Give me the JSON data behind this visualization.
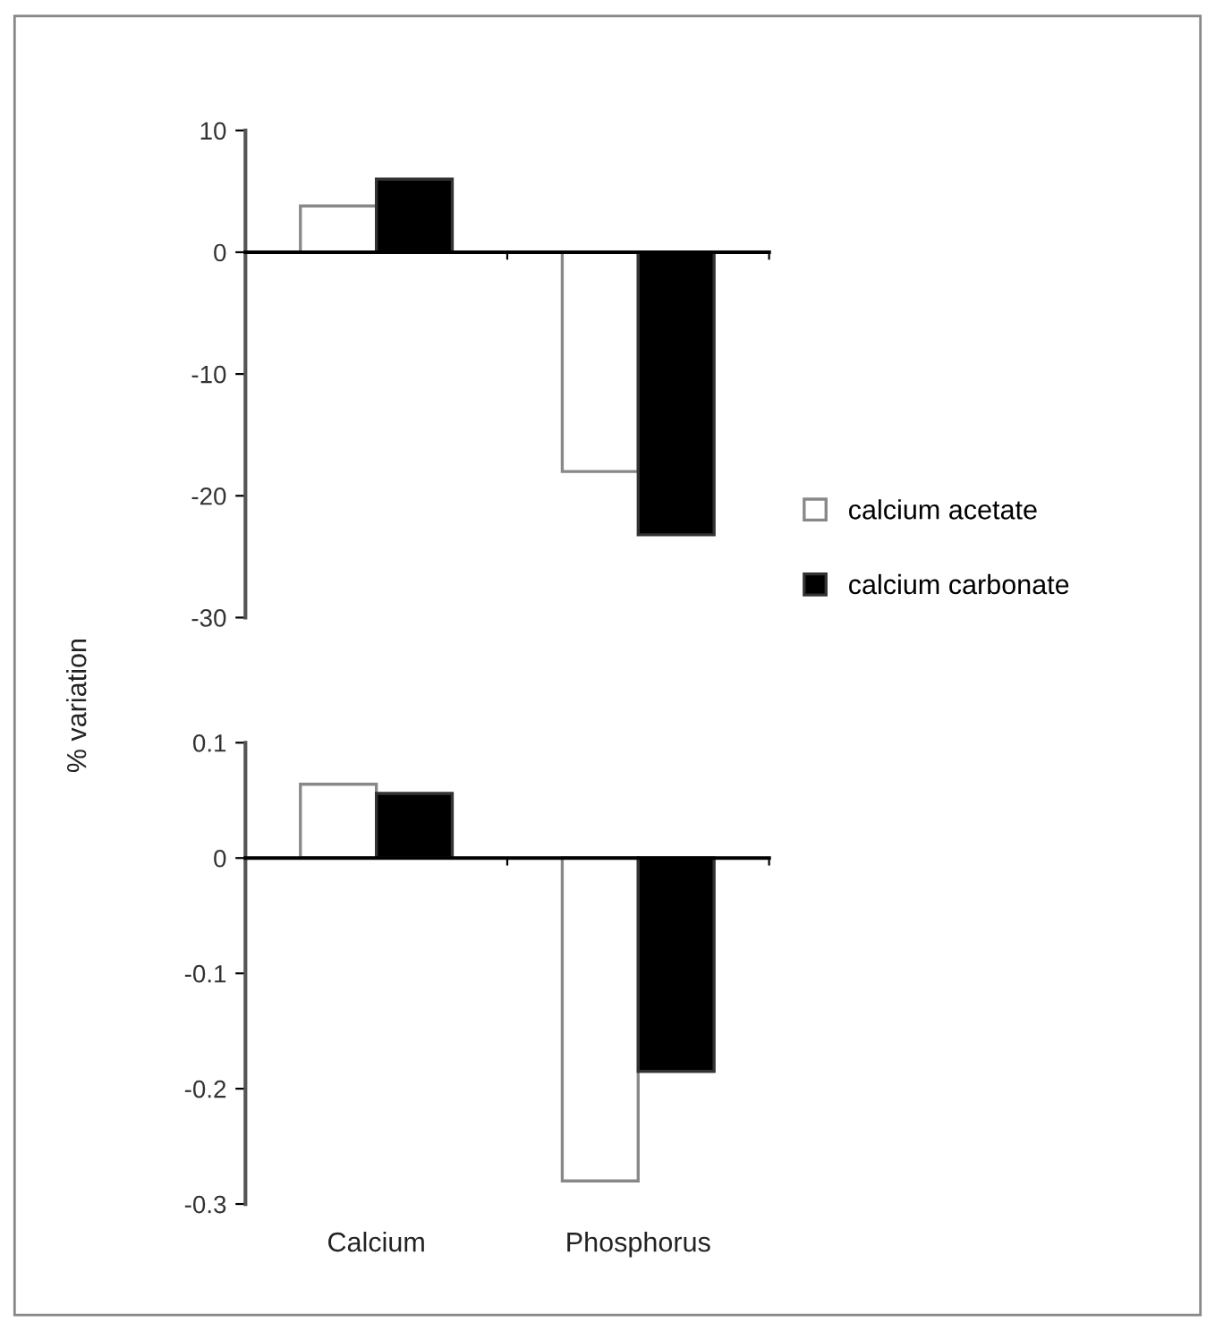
{
  "chart_data": [
    {
      "type": "bar",
      "ylabel": "% variation",
      "categories": [
        null,
        null
      ],
      "tick_labels": "y",
      "ylim": [
        -30,
        10
      ],
      "yticks": [
        -30,
        -20,
        -10,
        0,
        10
      ],
      "legend": "right",
      "series": [
        {
          "name": "calcium acetate",
          "color": "#ffffff",
          "values": [
            3.8,
            -18
          ]
        },
        {
          "name": "calcium carbonate",
          "color": "#000000",
          "values": [
            6,
            -23.2
          ]
        }
      ]
    },
    {
      "type": "bar",
      "categories": [
        "Calcium",
        "Phosphorus"
      ],
      "ylim": [
        -0.3,
        0.1
      ],
      "yticks": [
        -0.3,
        -0.2,
        -0.1,
        0,
        0.1
      ],
      "series": [
        {
          "color": "#ffffff",
          "values": [
            0.064,
            -0.28
          ]
        },
        {
          "color": "#000000",
          "values": [
            0.056,
            -0.185
          ]
        }
      ]
    }
  ]
}
